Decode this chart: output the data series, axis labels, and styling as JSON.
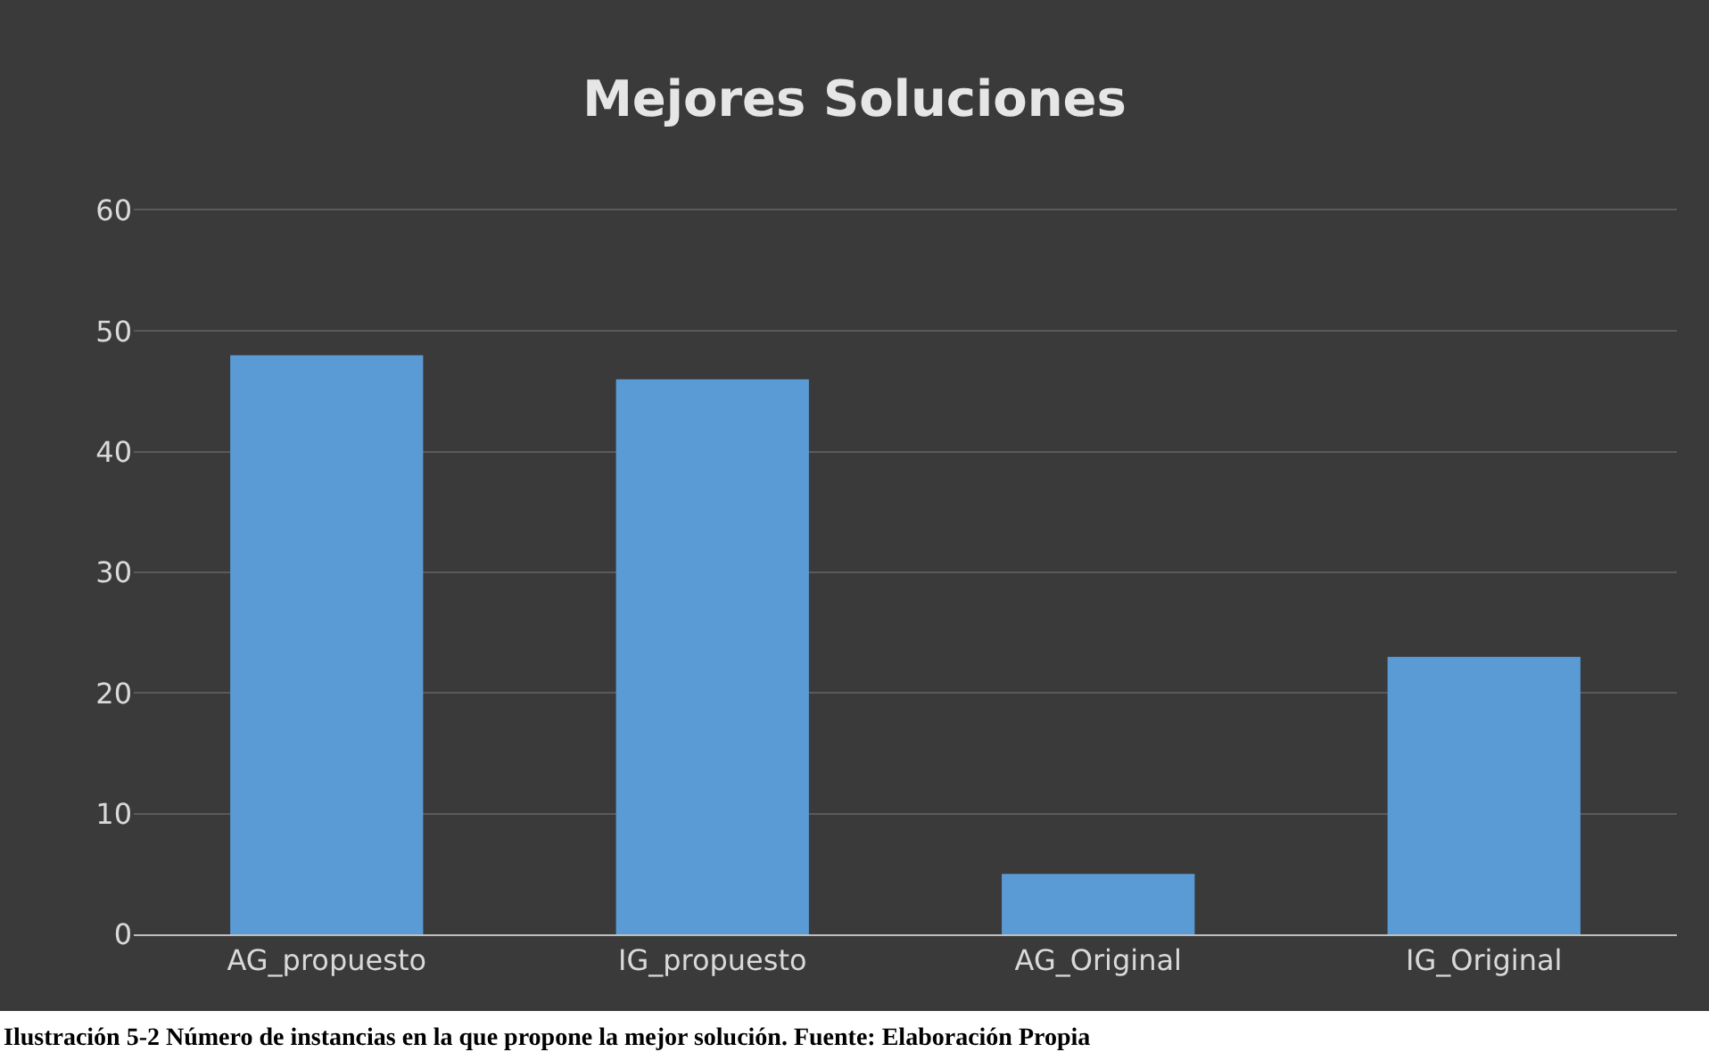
{
  "chart_data": {
    "type": "bar",
    "title": "Mejores Soluciones",
    "categories": [
      "AG_propuesto",
      "IG_propuesto",
      "AG_Original",
      "IG_Original"
    ],
    "values": [
      48,
      46,
      5,
      23
    ],
    "color": "#5b9bd5",
    "ylim": [
      0,
      60
    ],
    "yticks": [
      0,
      10,
      20,
      30,
      40,
      50,
      60
    ],
    "grid": "y",
    "annotations": [
      "Ilustración 5-2 Número de instancias en la que propone la mejor solución. Fuente: Elaboración Propia"
    ]
  }
}
